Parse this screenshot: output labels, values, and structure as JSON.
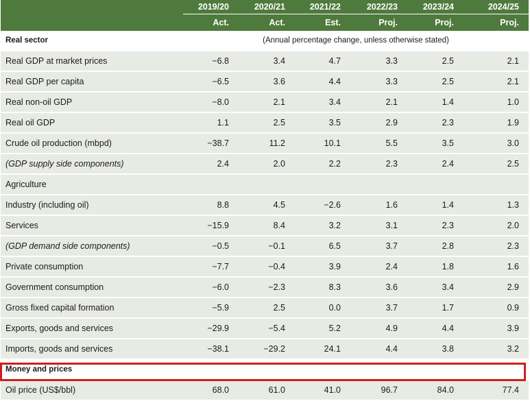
{
  "header": {
    "years": [
      "2019/20",
      "2020/21",
      "2021/22",
      "2022/23",
      "2023/24",
      "2024/25"
    ],
    "status": [
      "Act.",
      "Act.",
      "Est.",
      "Proj.",
      "Proj.",
      "Proj."
    ]
  },
  "sections": {
    "real_sector": "Real sector",
    "real_sector_note": "(Annual percentage change, unless otherwise stated)",
    "money_prices": "Money and prices"
  },
  "rows": [
    {
      "label": "Real GDP at market prices",
      "values": [
        "−6.8",
        "3.4",
        "4.7",
        "3.3",
        "2.5",
        "2.1"
      ]
    },
    {
      "label": "Real GDP per capita",
      "values": [
        "−6.5",
        "3.6",
        "4.4",
        "3.3",
        "2.5",
        "2.1"
      ]
    },
    {
      "label": "Real non-oil GDP",
      "values": [
        "−8.0",
        "2.1",
        "3.4",
        "2.1",
        "1.4",
        "1.0"
      ]
    },
    {
      "label": "Real oil GDP",
      "values": [
        "1.1",
        "2.5",
        "3.5",
        "2.9",
        "2.3",
        "1.9"
      ]
    },
    {
      "label": "Crude oil production (mbpd)",
      "values": [
        "−38.7",
        "11.2",
        "10.1",
        "5.5",
        "3.5",
        "3.0"
      ]
    },
    {
      "label": "(GDP supply side components)",
      "values": [
        "2.4",
        "2.0",
        "2.2",
        "2.3",
        "2.4",
        "2.5"
      ]
    },
    {
      "label": "Agriculture",
      "values": [
        "",
        "",
        "",
        "",
        "",
        ""
      ]
    },
    {
      "label": "Industry (including oil)",
      "values": [
        "8.8",
        "4.5",
        "−2.6",
        "1.6",
        "1.4",
        "1.3"
      ]
    },
    {
      "label": "Services",
      "values": [
        "−15.9",
        "8.4",
        "3.2",
        "3.1",
        "2.3",
        "2.0"
      ]
    },
    {
      "label": "(GDP demand side components)",
      "values": [
        "−0.5",
        "−0.1",
        "6.5",
        "3.7",
        "2.8",
        "2.3"
      ]
    },
    {
      "label": "Private consumption",
      "values": [
        "−7.7",
        "−0.4",
        "3.9",
        "2.4",
        "1.8",
        "1.6"
      ]
    },
    {
      "label": "Government consumption",
      "values": [
        "−6.0",
        "−2.3",
        "8.3",
        "3.6",
        "3.4",
        "2.9"
      ]
    },
    {
      "label": "Gross fixed capital formation",
      "values": [
        "−5.9",
        "2.5",
        "0.0",
        "3.7",
        "1.7",
        "0.9"
      ]
    },
    {
      "label": "Exports, goods and services",
      "values": [
        "−29.9",
        "−5.4",
        "5.2",
        "4.9",
        "4.4",
        "3.9"
      ]
    },
    {
      "label": "Imports, goods and services",
      "values": [
        "−38.1",
        "−29.2",
        "24.1",
        "4.4",
        "3.8",
        "3.2"
      ]
    }
  ],
  "oil_price": {
    "label": "Oil price (US$/bbl)",
    "values": [
      "68.0",
      "61.0",
      "41.0",
      "96.7",
      "84.0",
      "77.4"
    ]
  },
  "colors": {
    "header_bg": "#4f7a3d",
    "row_shade": "#e8ebe4",
    "highlight": "#d41c1c"
  }
}
